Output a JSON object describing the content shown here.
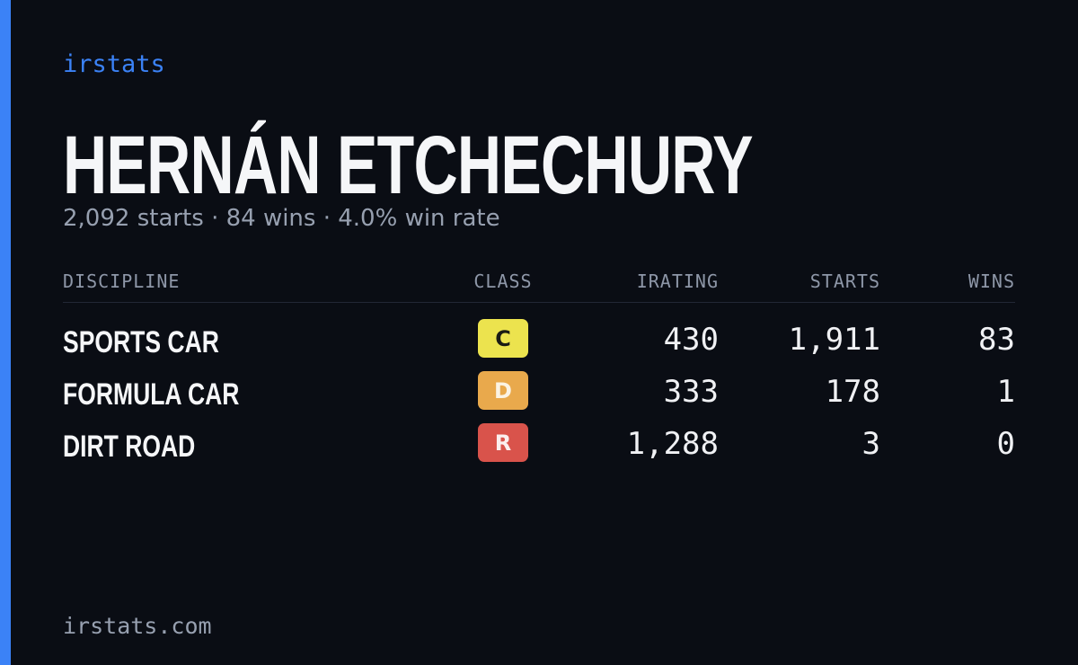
{
  "brand": "irstats",
  "driver": {
    "name": "HERNÁN ETCHECHURY",
    "summary": "2,092 starts · 84 wins · 4.0% win rate"
  },
  "table": {
    "headers": [
      "DISCIPLINE",
      "CLASS",
      "IRATING",
      "STARTS",
      "WINS"
    ],
    "rows": [
      {
        "discipline": "SPORTS CAR",
        "class": "C",
        "class_color": "#ece34e",
        "class_text_color": "#1a1a14",
        "irating": "430",
        "starts": "1,911",
        "wins": "83"
      },
      {
        "discipline": "FORMULA CAR",
        "class": "D",
        "class_color": "#e9a94c",
        "class_text_color": "#fbf3e4",
        "irating": "333",
        "starts": "178",
        "wins": "1"
      },
      {
        "discipline": "DIRT ROAD",
        "class": "R",
        "class_color": "#d9534b",
        "class_text_color": "#fbeeee",
        "irating": "1,288",
        "starts": "3",
        "wins": "0"
      }
    ]
  },
  "footer": "irstats.com"
}
